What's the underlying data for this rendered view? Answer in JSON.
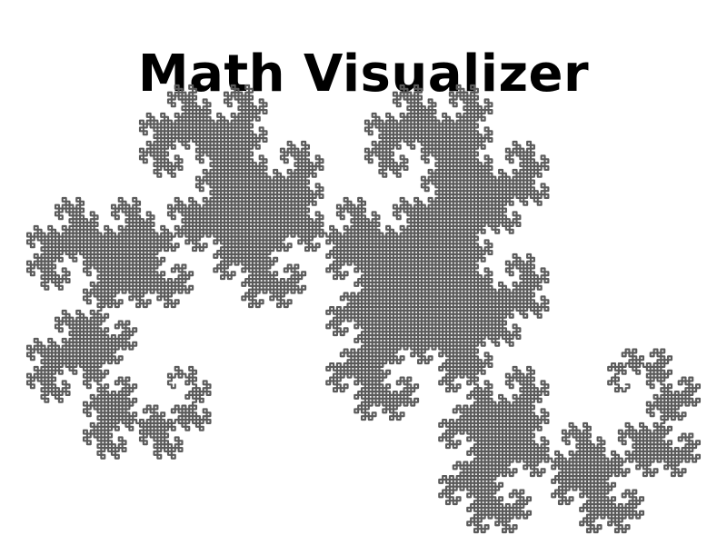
{
  "page": {
    "title": "Math Visualizer"
  },
  "figure": {
    "kind": "heighway-dragon-curve",
    "iterations": 14,
    "stroke_color": "#5a5a5a",
    "background_color": "#ffffff"
  }
}
